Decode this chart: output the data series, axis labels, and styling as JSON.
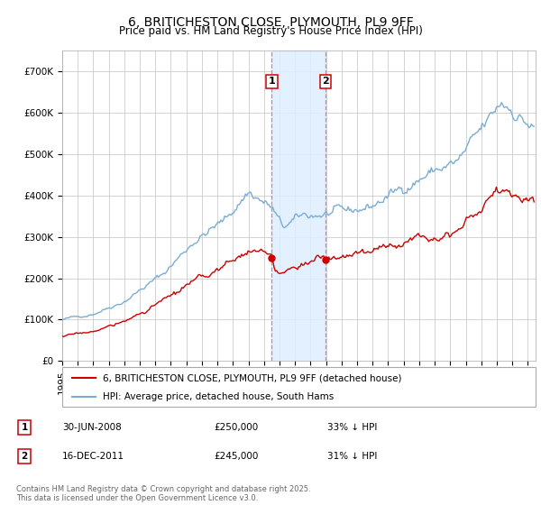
{
  "title": "6, BRITICHESTON CLOSE, PLYMOUTH, PL9 9FF",
  "subtitle": "Price paid vs. HM Land Registry's House Price Index (HPI)",
  "ylim": [
    0,
    750000
  ],
  "yticks": [
    0,
    100000,
    200000,
    300000,
    400000,
    500000,
    600000,
    700000
  ],
  "ytick_labels": [
    "£0",
    "£100K",
    "£200K",
    "£300K",
    "£400K",
    "£500K",
    "£600K",
    "£700K"
  ],
  "xlim_start": 1995.0,
  "xlim_end": 2025.5,
  "background_color": "#ffffff",
  "plot_bg_color": "#ffffff",
  "grid_color": "#cccccc",
  "hpi_color": "#7aadd4",
  "price_color": "#cc0000",
  "vline_color": "#e08080",
  "span_color": "#ddeeff",
  "sale1_date": 2008.5,
  "sale2_date": 2011.96,
  "sale1_price": 250000,
  "sale2_price": 245000,
  "sale1_label": "1",
  "sale2_label": "2",
  "legend_line1": "6, BRITICHESTON CLOSE, PLYMOUTH, PL9 9FF (detached house)",
  "legend_line2": "HPI: Average price, detached house, South Hams",
  "footer": "Contains HM Land Registry data © Crown copyright and database right 2025.\nThis data is licensed under the Open Government Licence v3.0.",
  "title_fontsize": 10,
  "subtitle_fontsize": 8.5,
  "tick_fontsize": 7.5,
  "legend_fontsize": 7.5,
  "ann_fontsize": 7.5,
  "footer_fontsize": 6.0
}
